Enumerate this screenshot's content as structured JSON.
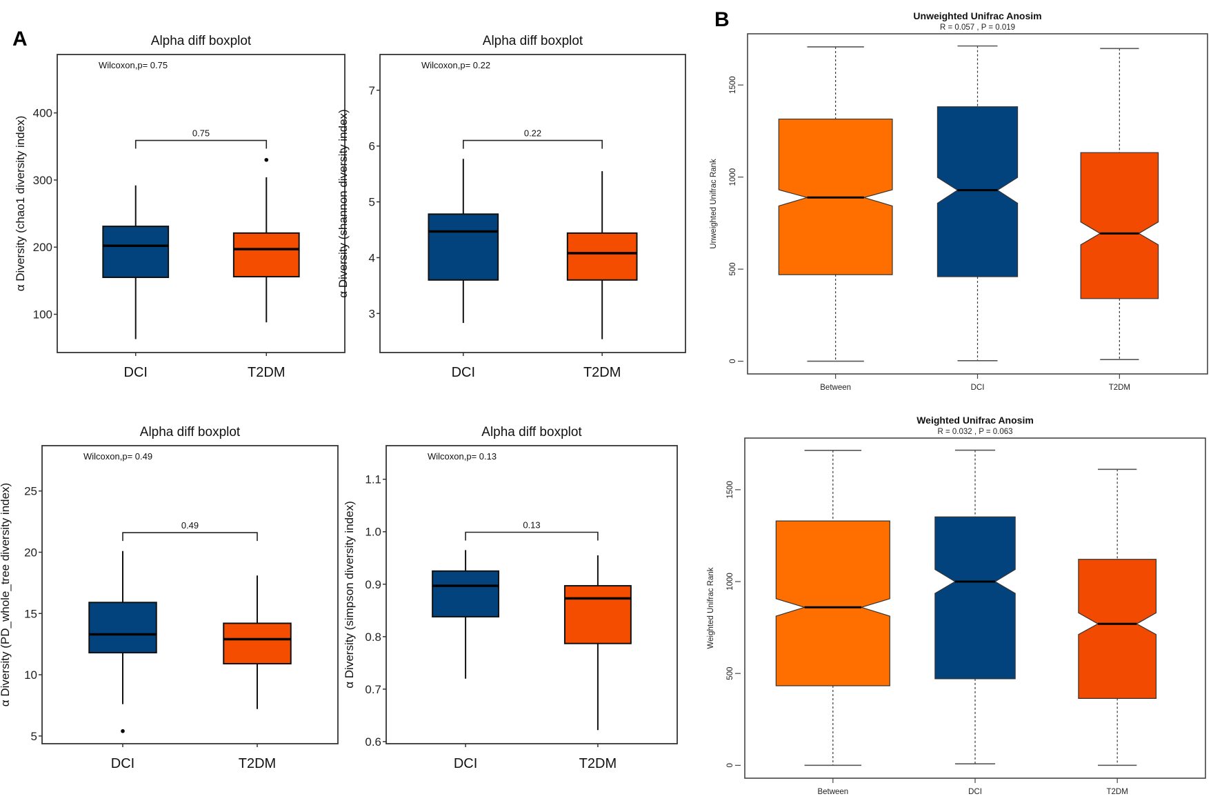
{
  "figure": {
    "panel_a_label": "A",
    "panel_b_label": "B"
  },
  "colors": {
    "DCI": "#03437d",
    "T2DM": "#f54d00",
    "Between": "#ff6f00",
    "T2DM_anosim": "#f24a00"
  },
  "chart_data": [
    {
      "type": "box",
      "title": "Alpha diff boxplot",
      "annotation": "Wilcoxon,p= 0.75",
      "ylabel": "α Diversity (chao1 diversity index)",
      "xlabel": "",
      "categories": [
        "DCI",
        "T2DM"
      ],
      "ylim": [
        43,
        487
      ],
      "xlim": [
        0.4,
        2.6
      ],
      "yticks": [
        "100",
        "200",
        "300",
        "400"
      ],
      "boxes": [
        {
          "group": "DCI",
          "min": 63,
          "q1": 155,
          "median": 202,
          "q3": 231,
          "max": 292,
          "outliers": []
        },
        {
          "group": "T2DM",
          "min": 88,
          "q1": 156,
          "median": 197,
          "q3": 221,
          "max": 304,
          "outliers": [
            330
          ]
        }
      ],
      "bracket": {
        "y": 359,
        "label": "0.75"
      }
    },
    {
      "type": "box",
      "title": "Alpha diff boxplot",
      "annotation": "Wilcoxon,p= 0.22",
      "ylabel": "α Diversity (shannon diversity index)",
      "xlabel": "",
      "categories": [
        "DCI",
        "T2DM"
      ],
      "ylim": [
        2.3,
        7.64
      ],
      "xlim": [
        0.4,
        2.6
      ],
      "yticks": [
        "3",
        "4",
        "5",
        "6",
        "7"
      ],
      "boxes": [
        {
          "group": "DCI",
          "min": 2.83,
          "q1": 3.6,
          "median": 4.47,
          "q3": 4.78,
          "max": 5.77,
          "outliers": []
        },
        {
          "group": "T2DM",
          "min": 2.54,
          "q1": 3.6,
          "median": 4.08,
          "q3": 4.44,
          "max": 5.55,
          "outliers": []
        }
      ],
      "bracket": {
        "y": 6.1,
        "label": "0.22"
      }
    },
    {
      "type": "box",
      "title": "Alpha diff boxplot",
      "annotation": "Wilcoxon,p= 0.49",
      "ylabel": "α Diversity (PD_whole_tree diversity index)",
      "xlabel": "",
      "categories": [
        "DCI",
        "T2DM"
      ],
      "ylim": [
        4.37,
        28.7
      ],
      "xlim": [
        0.4,
        2.6
      ],
      "yticks": [
        "5",
        "10",
        "15",
        "20",
        "25"
      ],
      "boxes": [
        {
          "group": "DCI",
          "min": 7.6,
          "q1": 11.8,
          "median": 13.3,
          "q3": 15.9,
          "max": 20.1,
          "outliers": [
            5.4
          ]
        },
        {
          "group": "T2DM",
          "min": 7.2,
          "q1": 10.9,
          "median": 12.9,
          "q3": 14.2,
          "max": 18.1,
          "outliers": []
        }
      ],
      "bracket": {
        "y": 21.6,
        "label": "0.49"
      }
    },
    {
      "type": "box",
      "title": "Alpha diff boxplot",
      "annotation": "Wilcoxon,p= 0.13",
      "ylabel": "α Diversity (simpson diversity index)",
      "xlabel": "",
      "categories": [
        "DCI",
        "T2DM"
      ],
      "ylim": [
        0.596,
        1.164
      ],
      "xlim": [
        0.4,
        2.6
      ],
      "yticks": [
        "0.6",
        "0.7",
        "0.8",
        "0.9",
        "1.0",
        "1.1"
      ],
      "boxes": [
        {
          "group": "DCI",
          "min": 0.72,
          "q1": 0.838,
          "median": 0.897,
          "q3": 0.925,
          "max": 0.965,
          "outliers": []
        },
        {
          "group": "T2DM",
          "min": 0.622,
          "q1": 0.787,
          "median": 0.873,
          "q3": 0.897,
          "max": 0.955,
          "outliers": []
        }
      ],
      "bracket": {
        "y": 0.999,
        "label": "0.13"
      }
    },
    {
      "type": "box",
      "notched": true,
      "title": "Unweighted Unifrac Anosim",
      "subtitle": "R = 0.057 ,  P = 0.019",
      "ylabel": "Unweighted Unifrac Rank",
      "xlabel": "",
      "categories": [
        "Between",
        "DCI",
        "T2DM"
      ],
      "ylim": [
        -69,
        1778
      ],
      "xlim": [
        0.38,
        3.62
      ],
      "yticks": [
        "0",
        "500",
        "1000",
        "1500"
      ],
      "boxes": [
        {
          "group": "Between",
          "min": 0,
          "q1": 470,
          "notch_lower": 843,
          "median": 889,
          "notch_upper": 931,
          "q3": 1315,
          "max": 1707
        },
        {
          "group": "DCI",
          "min": 3,
          "q1": 459,
          "notch_lower": 858,
          "median": 929,
          "notch_upper": 998,
          "q3": 1382,
          "max": 1712
        },
        {
          "group": "T2DM",
          "min": 9,
          "q1": 340,
          "notch_lower": 632,
          "median": 694,
          "notch_upper": 756,
          "q3": 1133,
          "max": 1698
        }
      ]
    },
    {
      "type": "box",
      "notched": true,
      "title": "Weighted Unifrac Anosim",
      "subtitle": "R = 0.032 ,  P = 0.063",
      "ylabel": "Weighted Unifrac Rank",
      "xlabel": "",
      "categories": [
        "Between",
        "DCI",
        "T2DM"
      ],
      "ylim": [
        -70,
        1781
      ],
      "xlim": [
        0.38,
        3.62
      ],
      "yticks": [
        "0",
        "500",
        "1000",
        "1500"
      ],
      "boxes": [
        {
          "group": "Between",
          "min": 0,
          "q1": 433,
          "notch_lower": 812,
          "median": 860,
          "notch_upper": 907,
          "q3": 1330,
          "max": 1714
        },
        {
          "group": "DCI",
          "min": 8,
          "q1": 471,
          "notch_lower": 936,
          "median": 1000,
          "notch_upper": 1066,
          "q3": 1352,
          "max": 1715
        },
        {
          "group": "T2DM",
          "min": 0,
          "q1": 364,
          "notch_lower": 712,
          "median": 770,
          "notch_upper": 830,
          "q3": 1121,
          "max": 1611
        }
      ]
    }
  ]
}
